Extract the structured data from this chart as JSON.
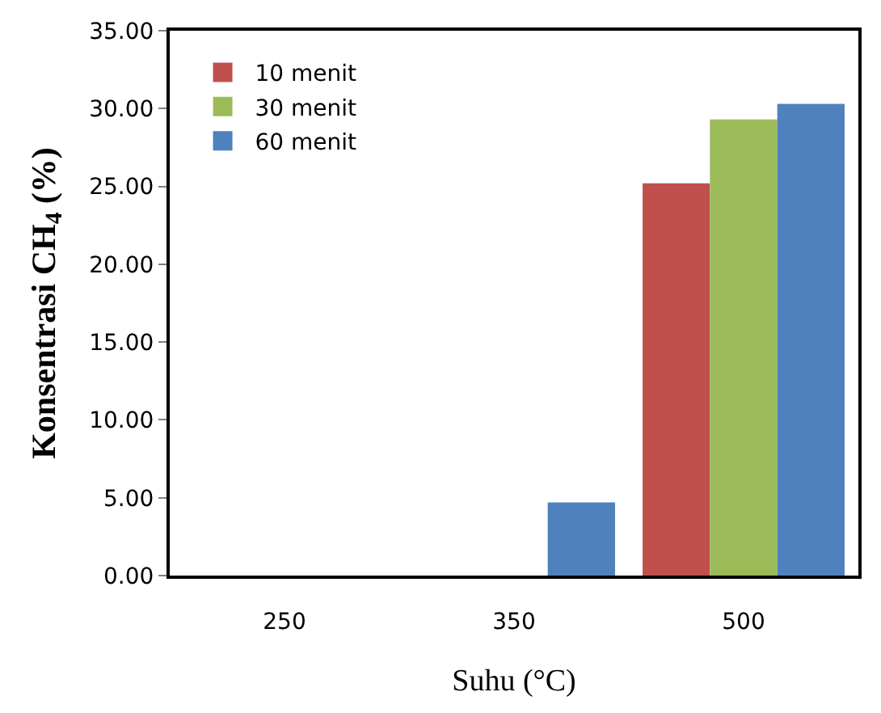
{
  "chart_data": {
    "type": "bar",
    "xlabel": "Suhu (°C)",
    "ylabel": "Konsentrasi CH$_{4}$ (%)",
    "categories": [
      "250",
      "350",
      "500"
    ],
    "series": [
      {
        "name": "10 menit",
        "color": "#c0504d",
        "values": [
          0,
          0,
          25.2
        ]
      },
      {
        "name": "30 menit",
        "color": "#9bbb59",
        "values": [
          0,
          0,
          29.3
        ]
      },
      {
        "name": "60 menit",
        "color": "#4f81bd",
        "values": [
          0,
          4.7,
          30.3
        ]
      }
    ],
    "ylim": [
      0,
      35
    ],
    "yticks": [
      {
        "value": 0,
        "label": "0.00"
      },
      {
        "value": 5,
        "label": "5.00"
      },
      {
        "value": 10,
        "label": "10.00"
      },
      {
        "value": 15,
        "label": "15.00"
      },
      {
        "value": 20,
        "label": "20.00"
      },
      {
        "value": 25,
        "label": "25.00"
      },
      {
        "value": 30,
        "label": "30.00"
      },
      {
        "value": 35,
        "label": "35.00"
      }
    ],
    "legend": "top left"
  }
}
